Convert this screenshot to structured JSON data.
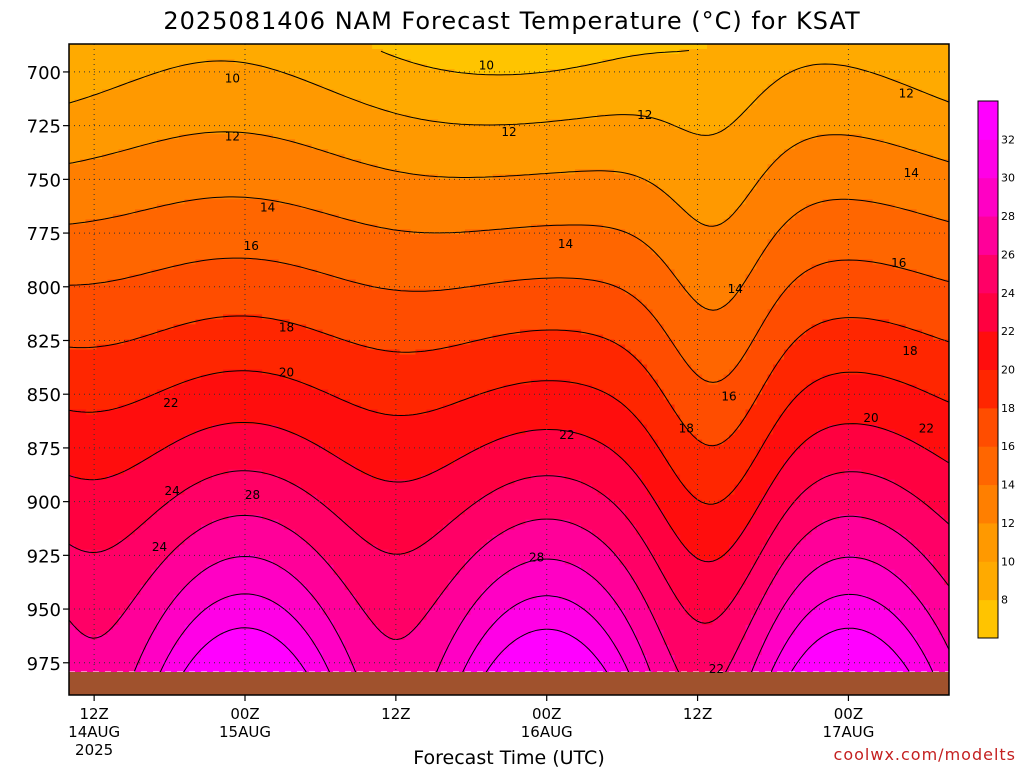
{
  "chart_data": {
    "type": "heatmap",
    "title": "2025081406 NAM Forecast Temperature (°C) for KSAT",
    "xlabel": "Forecast Time (UTC)",
    "ylabel": "",
    "credit": "coolwx.com/modelts",
    "y_scale": "pressure (hPa), decreasing upward",
    "ylim": [
      990,
      687
    ],
    "y_ticks": [
      700,
      725,
      750,
      775,
      800,
      825,
      850,
      875,
      900,
      925,
      950,
      975
    ],
    "x_range_hours": [
      4,
      74
    ],
    "x_ticks": [
      {
        "hour": 6,
        "label": "12Z",
        "date": "14AUG",
        "year": "2025"
      },
      {
        "hour": 18,
        "label": "00Z",
        "date": "15AUG",
        "year": ""
      },
      {
        "hour": 30,
        "label": "12Z",
        "date": "",
        "year": ""
      },
      {
        "hour": 42,
        "label": "00Z",
        "date": "16AUG",
        "year": ""
      },
      {
        "hour": 54,
        "label": "12Z",
        "date": "",
        "year": ""
      },
      {
        "hour": 66,
        "label": "00Z",
        "date": "17AUG",
        "year": ""
      },
      {
        "hour": 78,
        "label": "12Z",
        "date": "",
        "year": ""
      }
    ],
    "grid": true,
    "surface_pressure_hpa": 985,
    "colorbar": {
      "levels": [
        6,
        8,
        10,
        12,
        14,
        16,
        18,
        20,
        22,
        24,
        26,
        28,
        30,
        32,
        34
      ],
      "labels": [
        "8",
        "10",
        "12",
        "14",
        "16",
        "18",
        "20",
        "22",
        "24",
        "26",
        "28",
        "30",
        "32"
      ],
      "colors": [
        "#FFC400",
        "#FFAA00",
        "#FF9900",
        "#FF7F00",
        "#FF6600",
        "#FF4D00",
        "#FF2600",
        "#FF0D0D",
        "#FF0040",
        "#FF0066",
        "#FF0099",
        "#FF00C4",
        "#FF00E6",
        "#FF00FF"
      ]
    },
    "contour_labels": [
      {
        "text": "10",
        "hour": 17.0,
        "p": 703
      },
      {
        "text": "10",
        "hour": 37.2,
        "p": 697
      },
      {
        "text": "12",
        "hour": 17.0,
        "p": 730
      },
      {
        "text": "12",
        "hour": 39.0,
        "p": 728
      },
      {
        "text": "12",
        "hour": 49.8,
        "p": 720
      },
      {
        "text": "12",
        "hour": 70.6,
        "p": 710
      },
      {
        "text": "14",
        "hour": 19.8,
        "p": 763
      },
      {
        "text": "14",
        "hour": 43.5,
        "p": 780
      },
      {
        "text": "14",
        "hour": 57.0,
        "p": 801
      },
      {
        "text": "14",
        "hour": 71.0,
        "p": 747
      },
      {
        "text": "16",
        "hour": 18.5,
        "p": 781
      },
      {
        "text": "16",
        "hour": 56.5,
        "p": 851
      },
      {
        "text": "16",
        "hour": 70.0,
        "p": 789
      },
      {
        "text": "18",
        "hour": 21.3,
        "p": 819
      },
      {
        "text": "18",
        "hour": 53.1,
        "p": 866
      },
      {
        "text": "18",
        "hour": 70.9,
        "p": 830
      },
      {
        "text": "20",
        "hour": 21.3,
        "p": 840
      },
      {
        "text": "20",
        "hour": 67.8,
        "p": 861
      },
      {
        "text": "22",
        "hour": 12.1,
        "p": 854
      },
      {
        "text": "22",
        "hour": 43.6,
        "p": 869
      },
      {
        "text": "22",
        "hour": 72.2,
        "p": 866
      },
      {
        "text": "22",
        "hour": 55.5,
        "p": 978
      },
      {
        "text": "24",
        "hour": 12.2,
        "p": 895
      },
      {
        "text": "24",
        "hour": 11.2,
        "p": 921
      },
      {
        "text": "28",
        "hour": 18.6,
        "p": 897
      },
      {
        "text": "28",
        "hour": 41.2,
        "p": 926
      }
    ]
  }
}
